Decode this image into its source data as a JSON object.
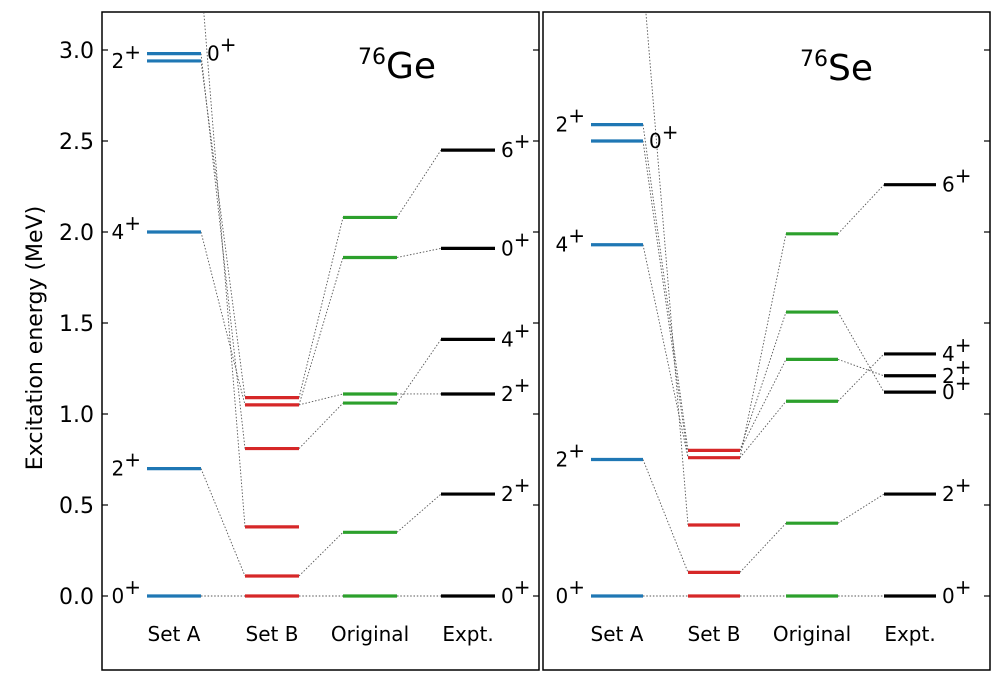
{
  "chart_data": {
    "type": "level-scheme",
    "ylabel": "Excitation energy (MeV)",
    "ylim": [
      0.0,
      3.2
    ],
    "yticks": [
      "0.0",
      "0.5",
      "1.0",
      "1.5",
      "2.0",
      "2.5",
      "3.0"
    ],
    "categories": [
      "Set A",
      "Set B",
      "Original",
      "Expt."
    ],
    "colors": {
      "Set A": "#1f77b4",
      "Set B": "#d62728",
      "Original": "#2ca02c",
      "Expt.": "#000000"
    },
    "panels": [
      {
        "title_sup": "76",
        "title_base": "Ge",
        "levels": {
          "Set A": [
            0.0,
            0.7,
            2.0,
            2.94,
            2.98
          ],
          "Set B": [
            0.0,
            0.11,
            0.38,
            0.81,
            1.05,
            1.09
          ],
          "Original": [
            0.0,
            0.35,
            1.06,
            1.11,
            1.86,
            2.08
          ],
          "Expt.": [
            0.0,
            0.56,
            1.11,
            1.41,
            1.91,
            2.45
          ]
        },
        "spin_labels": {
          "Set A": [
            {
              "text": "0",
              "sup": "+",
              "y": 0.0,
              "side": "left"
            },
            {
              "text": "2",
              "sup": "+",
              "y": 0.7,
              "side": "left"
            },
            {
              "text": "4",
              "sup": "+",
              "y": 2.0,
              "side": "left"
            },
            {
              "text": "2",
              "sup": "+",
              "y": 2.94,
              "side": "left"
            },
            {
              "text": "0",
              "sup": "+",
              "y": 2.98,
              "side": "right"
            }
          ],
          "Expt.": [
            {
              "text": "0",
              "sup": "+",
              "y": 0.0,
              "side": "right"
            },
            {
              "text": "2",
              "sup": "+",
              "y": 0.56,
              "side": "right"
            },
            {
              "text": "2",
              "sup": "+",
              "y": 1.11,
              "side": "right"
            },
            {
              "text": "4",
              "sup": "+",
              "y": 1.41,
              "side": "right"
            },
            {
              "text": "0",
              "sup": "+",
              "y": 1.91,
              "side": "right"
            },
            {
              "text": "6",
              "sup": "+",
              "y": 2.45,
              "side": "right"
            }
          ]
        },
        "connections": [
          [
            [
              "Set A",
              0.0
            ],
            [
              "Set B",
              0.0
            ]
          ],
          [
            [
              "Set B",
              0.0
            ],
            [
              "Original",
              0.0
            ]
          ],
          [
            [
              "Original",
              0.0
            ],
            [
              "Expt.",
              0.0
            ]
          ],
          [
            [
              "Set A",
              0.7
            ],
            [
              "Set B",
              0.11
            ]
          ],
          [
            [
              "Set B",
              0.11
            ],
            [
              "Original",
              0.35
            ]
          ],
          [
            [
              "Original",
              0.35
            ],
            [
              "Expt.",
              0.56
            ]
          ],
          [
            [
              "Set A",
              2.0
            ],
            [
              "Set B",
              1.05
            ]
          ],
          [
            [
              "Set B",
              1.05
            ],
            [
              "Original",
              1.86
            ]
          ],
          [
            [
              "Original",
              1.86
            ],
            [
              "Expt.",
              1.91
            ]
          ],
          [
            [
              "Set A",
              2.94
            ],
            [
              "Set B",
              1.09
            ]
          ],
          [
            [
              "Set B",
              1.09
            ],
            [
              "Original",
              2.08
            ]
          ],
          [
            [
              "Original",
              2.08
            ],
            [
              "Expt.",
              2.45
            ]
          ],
          [
            [
              "Set A",
              2.98
            ],
            [
              "Set B",
              0.81
            ]
          ],
          [
            [
              "Set B",
              0.81
            ],
            [
              "Original",
              1.06
            ]
          ],
          [
            [
              "Original",
              1.06
            ],
            [
              "Expt.",
              1.41
            ]
          ],
          [
            [
              "Set B",
              1.05
            ],
            [
              "Original",
              1.11
            ]
          ],
          [
            [
              "Original",
              1.11
            ],
            [
              "Expt.",
              1.11
            ]
          ],
          [
            [
              "Set B",
              0.38
            ],
            [
              "Set A",
              3.4
            ]
          ]
        ]
      },
      {
        "title_sup": "76",
        "title_base": "Se",
        "levels": {
          "Set A": [
            0.0,
            0.75,
            1.93,
            2.5,
            2.59
          ],
          "Set B": [
            0.0,
            0.13,
            0.39,
            0.76,
            0.8
          ],
          "Original": [
            0.0,
            0.4,
            1.07,
            1.3,
            1.56,
            1.99
          ],
          "Expt.": [
            0.0,
            0.56,
            1.12,
            1.21,
            1.33,
            2.26
          ]
        },
        "spin_labels": {
          "Set A": [
            {
              "text": "0",
              "sup": "+",
              "y": 0.0,
              "side": "left"
            },
            {
              "text": "2",
              "sup": "+",
              "y": 0.75,
              "side": "left"
            },
            {
              "text": "4",
              "sup": "+",
              "y": 1.93,
              "side": "left"
            },
            {
              "text": "2",
              "sup": "+",
              "y": 2.59,
              "side": "left"
            },
            {
              "text": "0",
              "sup": "+",
              "y": 2.5,
              "side": "right"
            }
          ],
          "Expt.": [
            {
              "text": "0",
              "sup": "+",
              "y": 0.0,
              "side": "right"
            },
            {
              "text": "2",
              "sup": "+",
              "y": 0.56,
              "side": "right"
            },
            {
              "text": "0",
              "sup": "+",
              "y": 1.12,
              "side": "right"
            },
            {
              "text": "2",
              "sup": "+",
              "y": 1.21,
              "side": "right"
            },
            {
              "text": "4",
              "sup": "+",
              "y": 1.33,
              "side": "right"
            },
            {
              "text": "6",
              "sup": "+",
              "y": 2.26,
              "side": "right"
            }
          ]
        },
        "connections": [
          [
            [
              "Set A",
              0.0
            ],
            [
              "Set B",
              0.0
            ]
          ],
          [
            [
              "Set B",
              0.0
            ],
            [
              "Original",
              0.0
            ]
          ],
          [
            [
              "Original",
              0.0
            ],
            [
              "Expt.",
              0.0
            ]
          ],
          [
            [
              "Set A",
              0.75
            ],
            [
              "Set B",
              0.13
            ]
          ],
          [
            [
              "Set B",
              0.13
            ],
            [
              "Original",
              0.4
            ]
          ],
          [
            [
              "Original",
              0.4
            ],
            [
              "Expt.",
              0.56
            ]
          ],
          [
            [
              "Set A",
              1.93
            ],
            [
              "Set B",
              0.76
            ]
          ],
          [
            [
              "Set B",
              0.76
            ],
            [
              "Original",
              1.99
            ]
          ],
          [
            [
              "Original",
              1.99
            ],
            [
              "Expt.",
              2.26
            ]
          ],
          [
            [
              "Set A",
              2.59
            ],
            [
              "Set B",
              0.8
            ]
          ],
          [
            [
              "Set B",
              0.8
            ],
            [
              "Original",
              1.56
            ]
          ],
          [
            [
              "Original",
              1.56
            ],
            [
              "Expt.",
              1.12
            ]
          ],
          [
            [
              "Set A",
              2.5
            ],
            [
              "Set B",
              0.76
            ]
          ],
          [
            [
              "Set B",
              0.76
            ],
            [
              "Original",
              1.07
            ]
          ],
          [
            [
              "Original",
              1.07
            ],
            [
              "Expt.",
              1.33
            ]
          ],
          [
            [
              "Set B",
              0.8
            ],
            [
              "Original",
              1.3
            ]
          ],
          [
            [
              "Original",
              1.3
            ],
            [
              "Expt.",
              1.21
            ]
          ],
          [
            [
              "Set B",
              0.39
            ],
            [
              "Set A",
              3.4
            ]
          ]
        ]
      }
    ]
  }
}
